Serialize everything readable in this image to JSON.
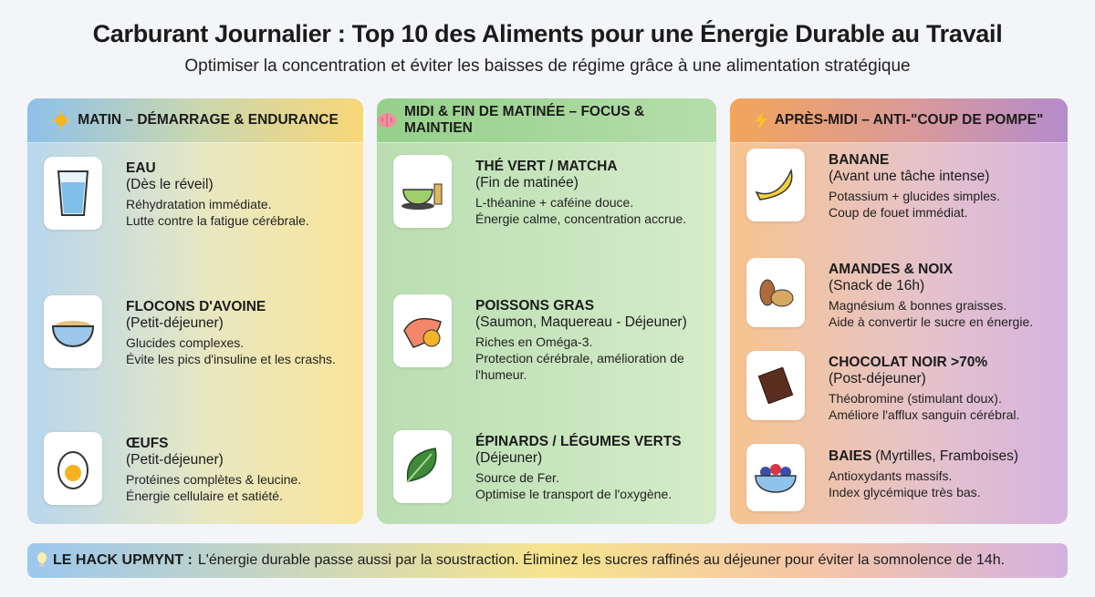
{
  "title": "Carburant Journalier : Top 10 des Aliments pour une Énergie Durable au Travail",
  "subtitle": "Optimiser la concentration et éviter les baisses de régime grâce à une alimentation stratégique",
  "columns": [
    {
      "header": "MATIN – DÉMARRAGE & ENDURANCE",
      "icon": "sun-icon",
      "items": [
        {
          "name": "EAU",
          "when": "(Dès le réveil)",
          "desc1": "Réhydratation immédiate.",
          "desc2": "Lutte contre la fatigue cérébrale.",
          "icon": "water-glass-icon"
        },
        {
          "name": "FLOCONS D'AVOINE",
          "when": "(Petit-déjeuner)",
          "desc1": "Glucides complexes.",
          "desc2": "Évite les pics d'insuline et les crashs.",
          "icon": "oatmeal-bowl-icon"
        },
        {
          "name": "ŒUFS",
          "when": "(Petit-déjeuner)",
          "desc1": "Protéines complètes & leucine.",
          "desc2": "Énergie cellulaire et satiété.",
          "icon": "egg-icon"
        }
      ]
    },
    {
      "header": "MIDI & FIN DE MATINÉE – FOCUS & MAINTIEN",
      "icon": "brain-icon",
      "items": [
        {
          "name": "THÉ VERT / MATCHA",
          "when": "(Fin de matinée)",
          "desc1": "L-théanine + caféine douce.",
          "desc2": "Énergie calme, concentration accrue.",
          "icon": "matcha-icon"
        },
        {
          "name": "POISSONS GRAS",
          "when": "(Saumon, Maquereau - Déjeuner)",
          "desc1": "Riches en Oméga-3.",
          "desc2": "Protection cérébrale, amélioration de l'humeur.",
          "icon": "salmon-icon"
        },
        {
          "name": "ÉPINARDS / LÉGUMES VERTS",
          "when": "(Déjeuner)",
          "desc1": "Source de Fer.",
          "desc2": "Optimise le transport de l'oxygène.",
          "icon": "spinach-icon"
        }
      ]
    },
    {
      "header": "APRÈS-MIDI – ANTI-\"COUP DE POMPE\"",
      "icon": "lightning-icon",
      "items": [
        {
          "name": "BANANE",
          "when": "(Avant une tâche intense)",
          "desc1": "Potassium + glucides simples.",
          "desc2": "Coup de fouet immédiat.",
          "icon": "banana-icon"
        },
        {
          "name": "AMANDES & NOIX",
          "when": "(Snack de 16h)",
          "desc1": "Magnésium & bonnes graisses.",
          "desc2": "Aide à convertir le sucre en énergie.",
          "icon": "nuts-icon"
        },
        {
          "name": "CHOCOLAT NOIR >70%",
          "when": "(Post-déjeuner)",
          "desc1": "Théobromine (stimulant doux).",
          "desc2": "Améliore l'afflux sanguin cérébral.",
          "icon": "chocolate-icon"
        },
        {
          "name": "BAIES",
          "when": "(Myrtilles, Framboises)",
          "desc1": "Antioxydants massifs.",
          "desc2": "Index glycémique très bas.",
          "icon": "berries-icon"
        }
      ]
    }
  ],
  "footer": {
    "label": "LE HACK UPMYNT :",
    "text": "L'énergie durable passe aussi par la soustraction. Éliminez les sucres raffinés au déjeuner pour éviter la somnolence de 14h.",
    "icon": "lightbulb-icon"
  }
}
